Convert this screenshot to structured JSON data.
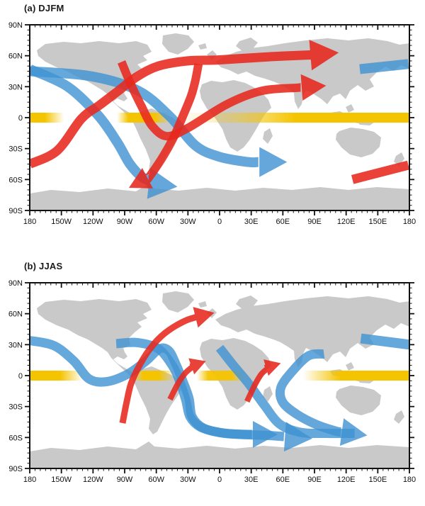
{
  "colors": {
    "red": "#e7281e",
    "blue": "#3f92d2",
    "yellow": "#f5c400",
    "land": "#c9c9c9",
    "frame": "#111111",
    "label": "#111111",
    "background": "#ffffff"
  },
  "axes": {
    "lon_labels": [
      "180",
      "150W",
      "120W",
      "90W",
      "60W",
      "30W",
      "0",
      "30E",
      "60E",
      "90E",
      "120E",
      "150E",
      "180"
    ],
    "lat_labels": [
      "90N",
      "60N",
      "30N",
      "0",
      "30S",
      "60S",
      "90S"
    ],
    "lon_range_deg": [
      -180,
      180
    ],
    "lat_range_deg": [
      -90,
      90
    ],
    "major_tick_deg": 30,
    "minor_tick_deg": 5
  },
  "chart_data": [
    {
      "id": "a",
      "title": "(a) DJFM",
      "type": "map-schematic",
      "equator_band_stops": [
        [
          0,
          1
        ],
        [
          4,
          1
        ],
        [
          9,
          0
        ],
        [
          23,
          0
        ],
        [
          26,
          1
        ],
        [
          33,
          1
        ],
        [
          37,
          0
        ],
        [
          45,
          0.12
        ],
        [
          53,
          0.35
        ],
        [
          62,
          0.65
        ],
        [
          70,
          1
        ],
        [
          100,
          1
        ]
      ],
      "arrows": [
        {
          "name": "blue-wavetrain-pacific-to-antarctic-peninsula",
          "color": "blue",
          "width": 14,
          "head": true,
          "head_scale": 3.0,
          "lonlat": [
            [
              -180,
              47
            ],
            [
              -144,
              30
            ],
            [
              -115,
              2
            ],
            [
              -97,
              -24
            ],
            [
              -85,
              -45
            ],
            [
              -73,
              -58
            ],
            [
              -57,
              -65
            ],
            [
              -40,
              -67
            ]
          ]
        },
        {
          "name": "blue-wavetrain-pacific-to-south-indian-ocean",
          "color": "blue",
          "width": 14,
          "head": true,
          "head_scale": 2.9,
          "lonlat": [
            [
              -180,
              45
            ],
            [
              -121,
              40
            ],
            [
              -77,
              26
            ],
            [
              -47,
              1
            ],
            [
              -23,
              -27
            ],
            [
              0,
              -38
            ],
            [
              27,
              -43
            ],
            [
              64,
              -43
            ]
          ]
        },
        {
          "name": "blue-segment-northwest-pacific",
          "color": "blue",
          "width": 14,
          "head": false,
          "head_scale": 0,
          "lonlat": [
            [
              133,
              47
            ],
            [
              179,
              52
            ]
          ]
        },
        {
          "name": "red-branch-to-southeast-pacific",
          "color": "red",
          "width": 12,
          "head": true,
          "head_scale": 2.6,
          "lonlat": [
            [
              -20,
              52
            ],
            [
              -23,
              36
            ],
            [
              -27,
              21
            ],
            [
              -35,
              1
            ],
            [
              -44,
              -20
            ],
            [
              -55,
              -40
            ],
            [
              -67,
              -58
            ],
            [
              -86,
              -68
            ]
          ]
        },
        {
          "name": "red-wavetrain-north-america-to-south-asia",
          "color": "red",
          "width": 12,
          "head": true,
          "head_scale": 3.0,
          "lonlat": [
            [
              -93,
              54
            ],
            [
              -84,
              32
            ],
            [
              -74,
              11
            ],
            [
              -64,
              -8
            ],
            [
              -50,
              -18
            ],
            [
              -30,
              -10
            ],
            [
              7,
              13
            ],
            [
              40,
              26
            ],
            [
              74,
              29
            ],
            [
              101,
              31
            ]
          ]
        },
        {
          "name": "red-wavetrain-south-pacific-to-northeast-asia",
          "color": "red",
          "width": 13,
          "head": true,
          "head_scale": 3.2,
          "lonlat": [
            [
              -180,
              -45
            ],
            [
              -154,
              -32
            ],
            [
              -131,
              -1
            ],
            [
              -114,
              12
            ],
            [
              -96,
              26
            ],
            [
              -78,
              40
            ],
            [
              -58,
              50
            ],
            [
              -30,
              55
            ],
            [
              0,
              56
            ],
            [
              47,
              59
            ],
            [
              90,
              61
            ],
            [
              113,
              63
            ]
          ]
        },
        {
          "name": "red-segment-south-pacific",
          "color": "red",
          "width": 13,
          "head": false,
          "head_scale": 0,
          "lonlat": [
            [
              126,
              -60
            ],
            [
              179,
              -46
            ]
          ]
        }
      ]
    },
    {
      "id": "b",
      "title": "(b) JJAS",
      "type": "map-schematic",
      "equator_band_stops": [
        [
          0,
          1
        ],
        [
          8,
          1
        ],
        [
          14,
          0
        ],
        [
          27,
          0
        ],
        [
          30,
          1
        ],
        [
          34,
          1
        ],
        [
          38,
          0
        ],
        [
          44,
          0
        ],
        [
          47,
          0.95
        ],
        [
          53,
          0.95
        ],
        [
          57,
          0
        ],
        [
          72,
          0
        ],
        [
          82,
          1
        ],
        [
          100,
          1
        ]
      ],
      "arrows": [
        {
          "name": "blue-wavetrain-north-pacific-to-southern-ocean",
          "color": "blue",
          "width": 13,
          "head": true,
          "head_scale": 2.8,
          "lonlat": [
            [
              -180,
              34
            ],
            [
              -157,
              29
            ],
            [
              -138,
              14
            ],
            [
              -124,
              -3
            ],
            [
              -108,
              -6
            ],
            [
              -88,
              1
            ],
            [
              -70,
              14
            ],
            [
              -57,
              26
            ],
            [
              -48,
              24
            ],
            [
              -41,
              10
            ],
            [
              -35,
              -5
            ],
            [
              -29,
              -22
            ],
            [
              -26,
              -40
            ],
            [
              -15,
              -51
            ],
            [
              5,
              -56
            ],
            [
              30,
              -57
            ],
            [
              55,
              -57
            ]
          ]
        },
        {
          "name": "blue-wavetrain-north-atlantic-to-southern-ocean",
          "color": "blue",
          "width": 13,
          "head": true,
          "head_scale": 3.1,
          "lonlat": [
            [
              -98,
              31
            ],
            [
              -78,
              32
            ],
            [
              -58,
              26
            ],
            [
              -45,
              10
            ],
            [
              -38,
              -5
            ],
            [
              -32,
              -24
            ],
            [
              -28,
              -40
            ],
            [
              -18,
              -50
            ],
            [
              0,
              -55
            ],
            [
              20,
              -57
            ],
            [
              45,
              -58
            ],
            [
              88,
              -61
            ]
          ]
        },
        {
          "name": "blue-wavetrain-europe-to-southern-ocean",
          "color": "blue",
          "width": 13,
          "head": false,
          "head_scale": 0,
          "lonlat": [
            [
              0,
              27
            ],
            [
              13,
              10
            ],
            [
              27,
              -7
            ],
            [
              42,
              -28
            ],
            [
              57,
              -47
            ],
            [
              77,
              -55
            ],
            [
              101,
              -56
            ],
            [
              128,
              -56
            ]
          ]
        },
        {
          "name": "blue-wavetrain-south-asia-to-southern-ocean",
          "color": "blue",
          "width": 13,
          "head": true,
          "head_scale": 2.9,
          "lonlat": [
            [
              99,
              21
            ],
            [
              84,
              19
            ],
            [
              68,
              3
            ],
            [
              58,
              -12
            ],
            [
              60,
              -26
            ],
            [
              74,
              -38
            ],
            [
              93,
              -48
            ],
            [
              111,
              -54
            ],
            [
              140,
              -58
            ]
          ]
        },
        {
          "name": "blue-segment-northwest-pacific",
          "color": "blue",
          "width": 14,
          "head": false,
          "head_scale": 0,
          "lonlat": [
            [
              134,
              36
            ],
            [
              180,
              30
            ]
          ]
        },
        {
          "name": "red-arrow-tropical-atlantic",
          "color": "red",
          "width": 8,
          "head": true,
          "head_scale": 2.9,
          "lonlat": [
            [
              -47,
              -23
            ],
            [
              -39,
              -7
            ],
            [
              -32,
              3
            ],
            [
              -24,
              10
            ],
            [
              -13,
              14
            ]
          ]
        },
        {
          "name": "red-arrow-tropical-africa",
          "color": "red",
          "width": 8,
          "head": true,
          "head_scale": 2.9,
          "lonlat": [
            [
              26,
              -25
            ],
            [
              34,
              -8
            ],
            [
              40,
              2
            ],
            [
              48,
              9
            ],
            [
              58,
              12
            ]
          ]
        },
        {
          "name": "red-arrow-east-pacific-to-north-atlantic",
          "color": "red",
          "width": 9,
          "head": true,
          "head_scale": 3.2,
          "lonlat": [
            [
              -92,
              -46
            ],
            [
              -88,
              -25
            ],
            [
              -84,
              -8
            ],
            [
              -77,
              8
            ],
            [
              -66,
              26
            ],
            [
              -52,
              41
            ],
            [
              -33,
              53
            ],
            [
              -17,
              58
            ],
            [
              -5,
              61
            ]
          ]
        }
      ]
    }
  ]
}
